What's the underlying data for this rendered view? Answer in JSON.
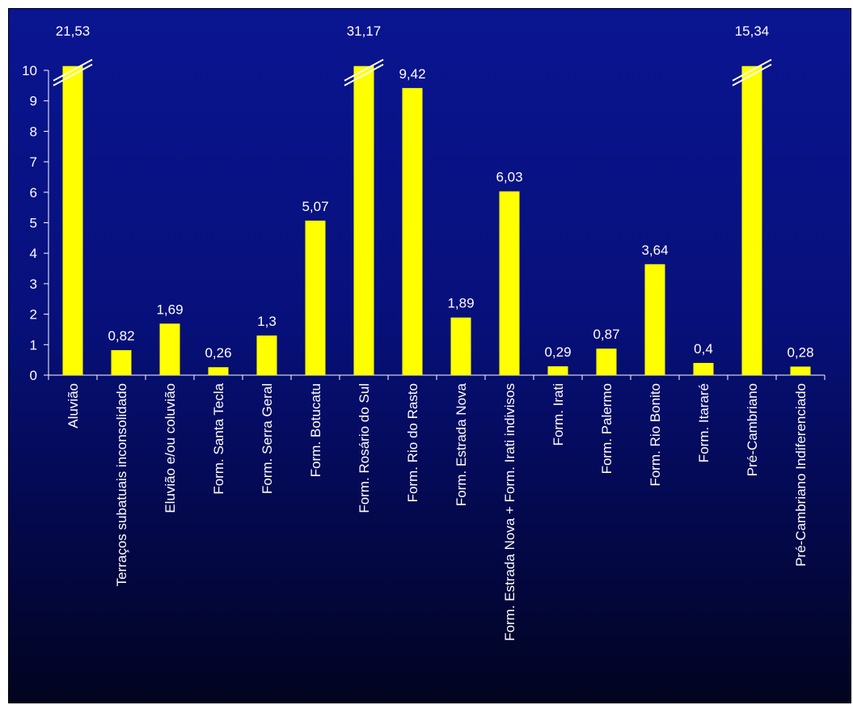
{
  "chart_data": {
    "type": "bar",
    "title": "",
    "xlabel": "",
    "ylabel": "",
    "ylim": [
      0,
      10
    ],
    "yticks": [
      "0",
      "1",
      "2",
      "3",
      "4",
      "5",
      "6",
      "7",
      "8",
      "9",
      "10"
    ],
    "grid": false,
    "legend": "none",
    "bar_color": "#ffff00",
    "background_color": "#0a1591",
    "axis_break": true,
    "categories": [
      "Aluvião",
      "Terraços subatuais inconsolidado",
      "Eluvião e/ou coluvião",
      "Form. Santa Tecla",
      "Form. Serra Geral",
      "Form. Botucatu",
      "Form. Rosário do Sul",
      "Form. Rio do Rasto",
      "Form. Estrada Nova",
      "Form. Estrada Nova + Form. Irati indivisos",
      "Form. Irati",
      "Form. Palermo",
      "Form. Rio Bonito",
      "Form. Itararé",
      "Pré-Cambriano",
      "Pré-Cambriano Indiferenciado"
    ],
    "values": [
      21.53,
      0.82,
      1.69,
      0.26,
      1.3,
      5.07,
      31.17,
      9.42,
      1.89,
      6.03,
      0.29,
      0.87,
      3.64,
      0.4,
      15.34,
      0.28
    ],
    "data_labels": [
      "21,53",
      "0,82",
      "1,69",
      "0,26",
      "1,3",
      "5,07",
      "31,17",
      "9,42",
      "1,89",
      "6,03",
      "0,29",
      "0,87",
      "3,64",
      "0,4",
      "15,34",
      "0,28"
    ]
  }
}
